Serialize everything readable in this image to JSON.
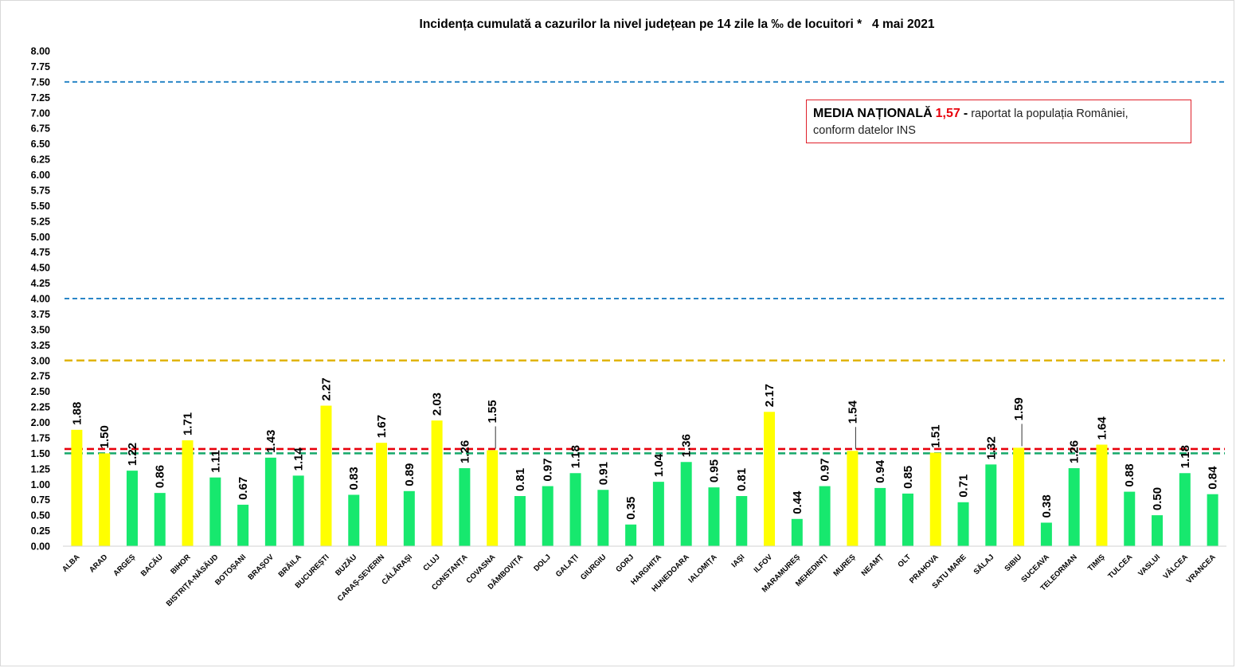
{
  "title": "Incidența cumulată a cazurilor la nivel județean pe 14 zile la ‰ de locuitori *   4 mai 2021",
  "note": {
    "label": "MEDIA NAȚIONALĂ",
    "value": "1,57",
    "dash": "-",
    "text_line1": "raportat la populația României,",
    "text_line2": "conform datelor INS"
  },
  "colors": {
    "bar_green": "#17e86e",
    "bar_yellow": "#ffff00",
    "line_blue": "#2a86c7",
    "line_gold": "#e0b400",
    "line_red": "#e8000b",
    "line_green": "#16a86a",
    "note_border": "#e0202a"
  },
  "chart_data": {
    "type": "bar",
    "title": "Incidența cumulată a cazurilor la nivel județean pe 14 zile la ‰ de locuitori *   4 mai 2021",
    "xlabel": "",
    "ylabel": "",
    "ylim": [
      0,
      8
    ],
    "ytick_step": 0.25,
    "grid": false,
    "categories": [
      "ALBA",
      "ARAD",
      "ARGEȘ",
      "BACĂU",
      "BIHOR",
      "BISTRIȚA-NĂSĂUD",
      "BOTOȘANI",
      "BRAȘOV",
      "BRĂILA",
      "BUCUREȘTI",
      "BUZĂU",
      "CARAȘ-SEVERIN",
      "CĂLĂRAȘI",
      "CLUJ",
      "CONSTANȚA",
      "COVASNA",
      "DÂMBOVIȚA",
      "DOLJ",
      "GALAȚI",
      "GIURGIU",
      "GORJ",
      "HARGHITA",
      "HUNEDOARA",
      "IALOMIȚA",
      "IAȘI",
      "ILFOV",
      "MARAMUREȘ",
      "MEHEDINȚI",
      "MUREȘ",
      "NEAMȚ",
      "OLT",
      "PRAHOVA",
      "SATU MARE",
      "SĂLAJ",
      "SIBIU",
      "SUCEAVA",
      "TELEORMAN",
      "TIMIȘ",
      "TULCEA",
      "VASLUI",
      "VÂLCEA",
      "VRANCEA"
    ],
    "values": [
      1.88,
      1.5,
      1.22,
      0.86,
      1.71,
      1.11,
      0.67,
      1.43,
      1.14,
      2.27,
      0.83,
      1.67,
      0.89,
      2.03,
      1.26,
      1.55,
      0.81,
      0.97,
      1.18,
      0.91,
      0.35,
      1.04,
      1.36,
      0.95,
      0.81,
      2.17,
      0.44,
      0.97,
      1.54,
      0.94,
      0.85,
      1.51,
      0.71,
      1.32,
      1.59,
      0.38,
      1.26,
      1.64,
      0.88,
      0.5,
      1.18,
      0.84
    ],
    "labels": [
      "1.88",
      "1.50",
      "1.22",
      "0.86",
      "1.71",
      "1.11",
      "0.67",
      "1.43",
      "1.14",
      "2.27",
      "0.83",
      "1.67",
      "0.89",
      "2.03",
      "1.26",
      "1.55",
      "0.81",
      "0.97",
      "1.18",
      "0.91",
      "0.35",
      "1.04",
      "1.36",
      "0.95",
      "0.81",
      "2.17",
      "0.44",
      "0.97",
      "1.54",
      "0.94",
      "0.85",
      "1.51",
      "0.71",
      "1.32",
      "1.59",
      "0.38",
      "1.26",
      "1.64",
      "0.88",
      "0.50",
      "1.18",
      "0.84"
    ],
    "bar_colors": [
      "yellow",
      "yellow",
      "green",
      "green",
      "yellow",
      "green",
      "green",
      "green",
      "green",
      "yellow",
      "green",
      "yellow",
      "green",
      "yellow",
      "green",
      "yellow",
      "green",
      "green",
      "green",
      "green",
      "green",
      "green",
      "green",
      "green",
      "green",
      "yellow",
      "green",
      "green",
      "yellow",
      "green",
      "green",
      "yellow",
      "green",
      "green",
      "yellow",
      "green",
      "green",
      "yellow",
      "green",
      "green",
      "green",
      "green"
    ],
    "reference_lines": [
      {
        "value": 7.5,
        "color": "line_blue"
      },
      {
        "value": 4.0,
        "color": "line_blue"
      },
      {
        "value": 3.0,
        "color": "line_gold"
      },
      {
        "value": 1.57,
        "color": "line_red"
      },
      {
        "value": 1.5,
        "color": "line_green"
      }
    ],
    "annotation": "MEDIA NAȚIONALĂ 1,57 - raportat la populația României, conform datelor INS"
  }
}
